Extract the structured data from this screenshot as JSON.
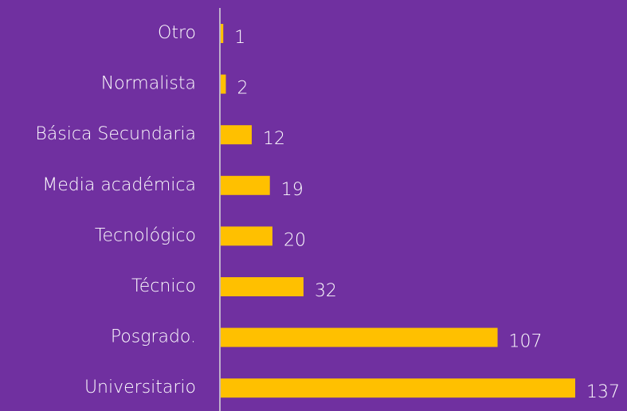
{
  "chart_data": {
    "type": "barh",
    "categories": [
      "Otro",
      "Normalista",
      "Básica Secundaria",
      "Media académica",
      "Tecnológico",
      "Técnico",
      "Posgrado.",
      "Universitario"
    ],
    "values": [
      1,
      2,
      12,
      19,
      20,
      32,
      107,
      137
    ],
    "color": "#ffc000"
  }
}
